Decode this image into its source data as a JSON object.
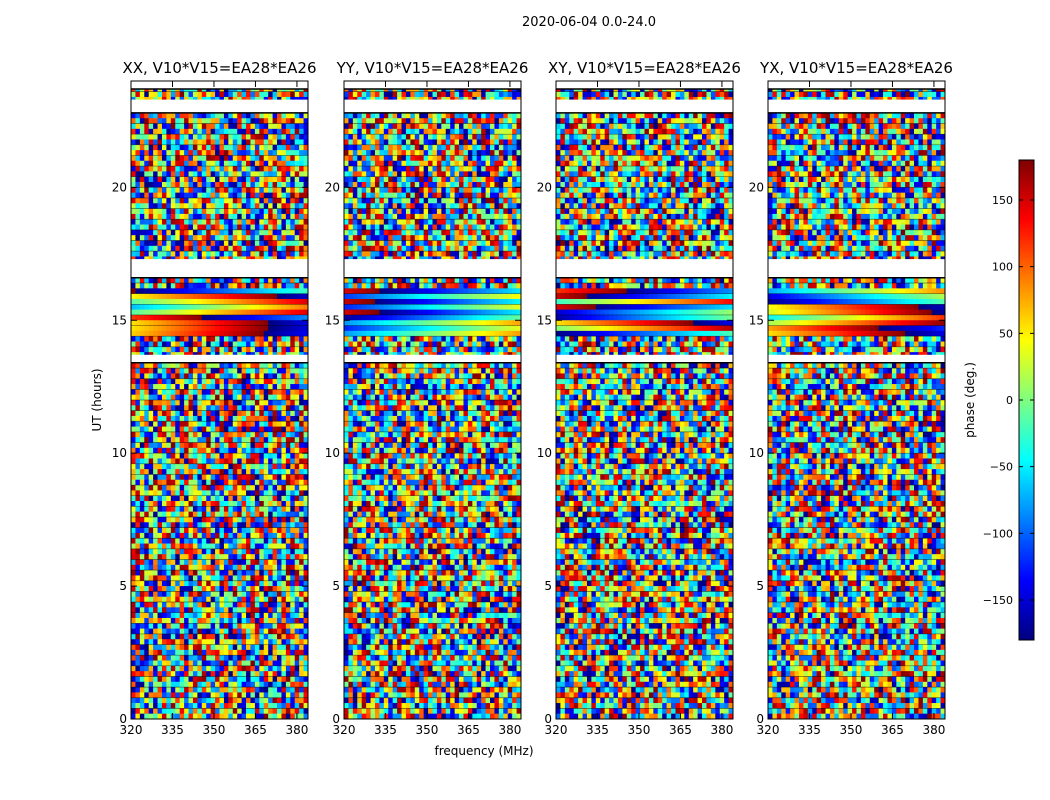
{
  "chart_data": {
    "type": "heatmap",
    "suptitle": "2020-06-04 0.0-24.0",
    "xlabel": "frequency (MHz)",
    "ylabel": "UT (hours)",
    "xlim": [
      320,
      384
    ],
    "ylim": [
      0,
      24
    ],
    "xticks": [
      320,
      335,
      350,
      365,
      380
    ],
    "yticks": [
      0,
      5,
      10,
      15,
      20
    ],
    "colorbar": {
      "label": "phase (deg.)",
      "range": [
        -180,
        180
      ],
      "ticks": [
        150,
        100,
        50,
        0,
        -50,
        -100,
        -150
      ],
      "tick_labels": [
        "150",
        "100",
        "50",
        "0",
        "−50",
        "−100",
        "−150"
      ],
      "colormap": "jet",
      "colors": [
        "#00007f",
        "#0000ff",
        "#007fff",
        "#00ffff",
        "#7fff7f",
        "#ffff00",
        "#ff7f00",
        "#ff0000",
        "#7f0000"
      ]
    },
    "panels": [
      {
        "id": "xx",
        "title": "XX, V10*V15=EA28*EA26"
      },
      {
        "id": "yy",
        "title": "YY, V10*V15=EA28*EA26"
      },
      {
        "id": "xy",
        "title": "XY, V10*V15=EA28*EA26"
      },
      {
        "id": "yx",
        "title": "YX, V10*V15=EA28*EA26"
      }
    ],
    "blank_time_ranges": [
      [
        22.8,
        23.3
      ],
      [
        23.7,
        24.0
      ],
      [
        16.6,
        17.3
      ],
      [
        13.4,
        13.7
      ]
    ]
  }
}
